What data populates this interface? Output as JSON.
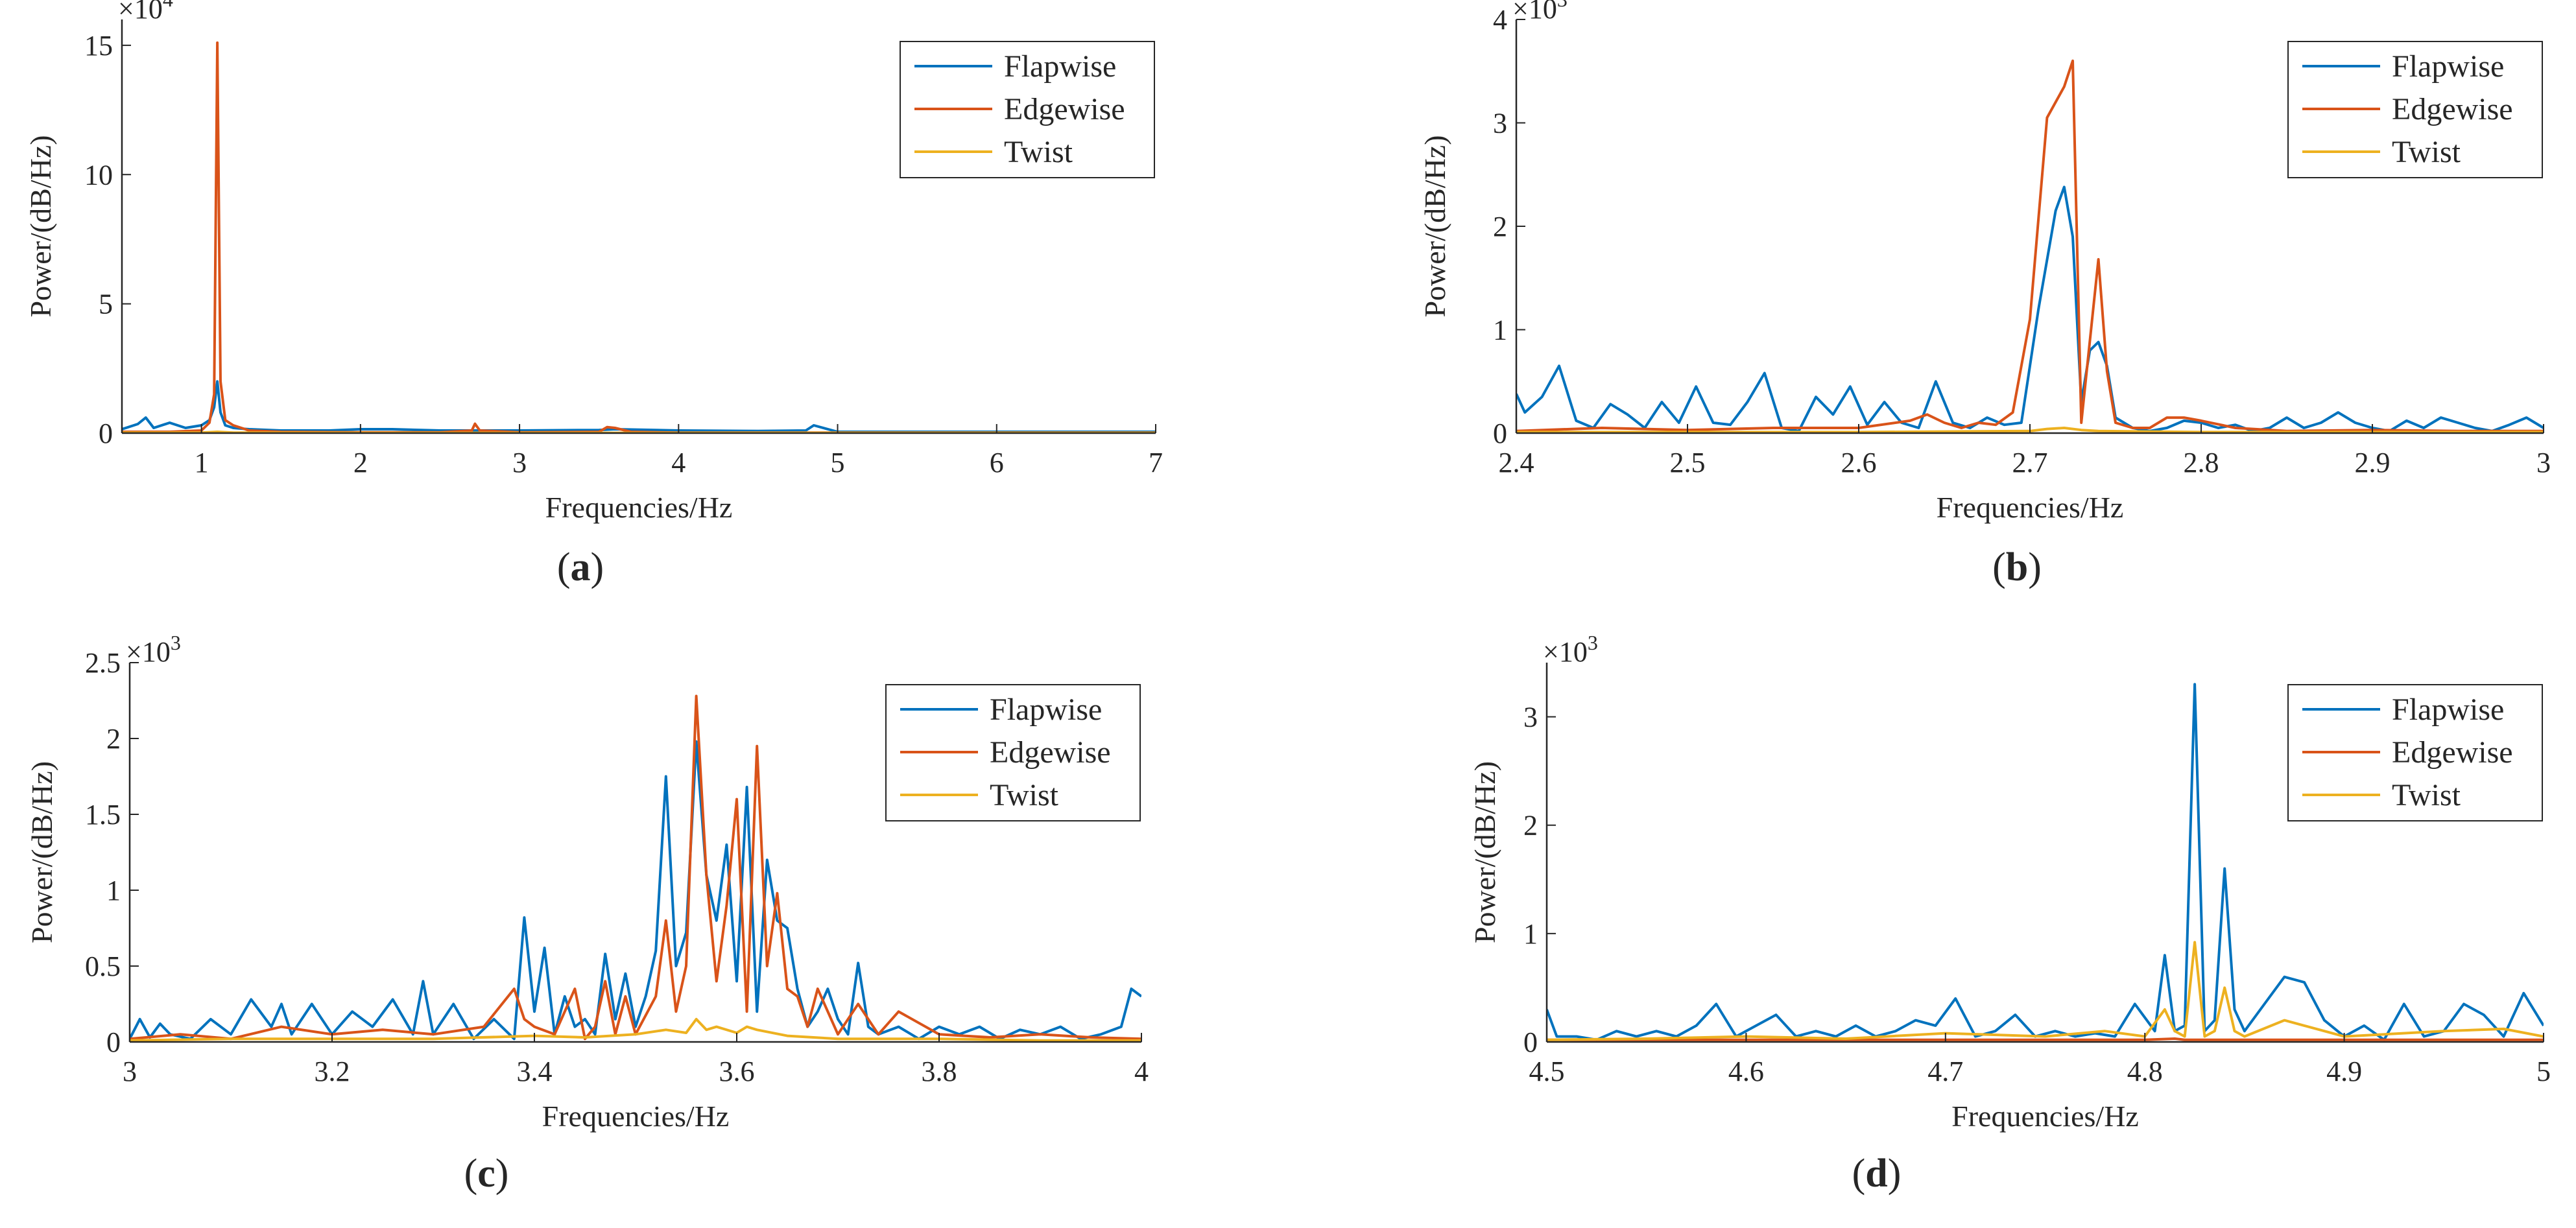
{
  "colors": {
    "Flapwise": "#0072BD",
    "Edgewise": "#D95319",
    "Twist": "#EDB120",
    "axis": "#262626"
  },
  "chart_data": [
    {
      "panel": "a",
      "caption": {
        "open": "(",
        "letter": "a",
        "close": ")"
      },
      "type": "line",
      "xlabel": "Frequencies/Hz",
      "ylabel": "Power/(dB/Hz)",
      "xlim": [
        0.5,
        7
      ],
      "ylim": [
        0,
        16
      ],
      "xticks": [
        1,
        2,
        3,
        4,
        5,
        6,
        7
      ],
      "xtick_labels": [
        "1",
        "2",
        "3",
        "4",
        "5",
        "6",
        "7"
      ],
      "yticks": [
        0,
        5,
        10,
        15
      ],
      "ytick_labels": [
        "0",
        "5",
        "10",
        "15"
      ],
      "multiplier": {
        "base": "×10",
        "exp": "4"
      },
      "legend": [
        "Flapwise",
        "Edgewise",
        "Twist"
      ],
      "legend_position": "top-right",
      "series": [
        {
          "name": "Flapwise",
          "x": [
            0.5,
            0.6,
            0.65,
            0.7,
            0.8,
            0.9,
            1.0,
            1.05,
            1.08,
            1.1,
            1.12,
            1.15,
            1.2,
            1.3,
            1.5,
            1.8,
            2.0,
            2.2,
            2.5,
            3.0,
            3.5,
            3.6,
            4.0,
            4.5,
            4.8,
            4.85,
            5.0,
            6.0,
            7.0
          ],
          "y": [
            0.15,
            0.35,
            0.6,
            0.2,
            0.4,
            0.2,
            0.3,
            0.5,
            1.0,
            2.0,
            0.8,
            0.3,
            0.2,
            0.15,
            0.1,
            0.1,
            0.15,
            0.15,
            0.1,
            0.1,
            0.12,
            0.15,
            0.1,
            0.08,
            0.1,
            0.3,
            0.05,
            0.05,
            0.05
          ]
        },
        {
          "name": "Edgewise",
          "x": [
            0.5,
            0.8,
            1.0,
            1.05,
            1.08,
            1.1,
            1.12,
            1.15,
            1.2,
            1.3,
            1.5,
            2.0,
            2.5,
            2.7,
            2.72,
            2.75,
            3.0,
            3.5,
            3.55,
            3.6,
            3.7,
            4.0,
            5.0,
            6.0,
            7.0
          ],
          "y": [
            0.05,
            0.05,
            0.1,
            0.4,
            1.5,
            15.1,
            2.0,
            0.5,
            0.3,
            0.1,
            0.05,
            0.03,
            0.03,
            0.1,
            0.36,
            0.1,
            0.03,
            0.05,
            0.23,
            0.2,
            0.05,
            0.02,
            0.02,
            0.02,
            0.02
          ]
        },
        {
          "name": "Twist",
          "x": [
            0.5,
            1.0,
            1.1,
            1.2,
            2.0,
            3.0,
            4.0,
            5.0,
            6.0,
            7.0
          ],
          "y": [
            0.02,
            0.02,
            0.05,
            0.02,
            0.01,
            0.01,
            0.01,
            0.01,
            0.01,
            0.01
          ]
        }
      ]
    },
    {
      "panel": "b",
      "caption": {
        "open": "(",
        "letter": "b",
        "close": ")"
      },
      "type": "line",
      "xlabel": "Frequencies/Hz",
      "ylabel": "Power/(dB/Hz)",
      "xlim": [
        2.4,
        3.0
      ],
      "ylim": [
        0,
        4
      ],
      "xticks": [
        2.4,
        2.5,
        2.6,
        2.7,
        2.8,
        2.9,
        3.0
      ],
      "xtick_labels": [
        "2.4",
        "2.5",
        "2.6",
        "2.7",
        "2.8",
        "2.9",
        "3"
      ],
      "yticks": [
        0,
        1,
        2,
        3,
        4
      ],
      "ytick_labels": [
        "0",
        "1",
        "2",
        "3",
        "4"
      ],
      "multiplier": {
        "base": "×10",
        "exp": "3"
      },
      "legend": [
        "Flapwise",
        "Edgewise",
        "Twist"
      ],
      "legend_position": "top-right",
      "series": [
        {
          "name": "Flapwise",
          "x": [
            2.4,
            2.405,
            2.415,
            2.425,
            2.435,
            2.445,
            2.455,
            2.465,
            2.475,
            2.485,
            2.495,
            2.505,
            2.515,
            2.525,
            2.535,
            2.545,
            2.555,
            2.565,
            2.575,
            2.585,
            2.595,
            2.605,
            2.615,
            2.625,
            2.635,
            2.645,
            2.655,
            2.665,
            2.675,
            2.685,
            2.695,
            2.705,
            2.715,
            2.72,
            2.725,
            2.73,
            2.735,
            2.74,
            2.745,
            2.75,
            2.76,
            2.77,
            2.78,
            2.79,
            2.8,
            2.81,
            2.82,
            2.83,
            2.84,
            2.85,
            2.86,
            2.87,
            2.88,
            2.89,
            2.9,
            2.91,
            2.92,
            2.93,
            2.94,
            2.95,
            2.96,
            2.97,
            2.98,
            2.99,
            3.0
          ],
          "y": [
            0.38,
            0.2,
            0.35,
            0.65,
            0.12,
            0.05,
            0.28,
            0.18,
            0.05,
            0.3,
            0.1,
            0.45,
            0.1,
            0.08,
            0.3,
            0.58,
            0.05,
            0.02,
            0.35,
            0.18,
            0.45,
            0.08,
            0.3,
            0.1,
            0.05,
            0.5,
            0.1,
            0.05,
            0.15,
            0.08,
            0.1,
            1.2,
            2.15,
            2.38,
            1.9,
            0.3,
            0.8,
            0.88,
            0.65,
            0.15,
            0.05,
            0.02,
            0.05,
            0.12,
            0.1,
            0.05,
            0.08,
            0.02,
            0.05,
            0.15,
            0.05,
            0.1,
            0.2,
            0.1,
            0.05,
            0.02,
            0.12,
            0.05,
            0.15,
            0.1,
            0.05,
            0.02,
            0.08,
            0.15,
            0.05
          ]
        },
        {
          "name": "Edgewise",
          "x": [
            2.4,
            2.45,
            2.5,
            2.55,
            2.6,
            2.63,
            2.64,
            2.65,
            2.66,
            2.67,
            2.68,
            2.69,
            2.7,
            2.71,
            2.72,
            2.725,
            2.73,
            2.74,
            2.745,
            2.75,
            2.76,
            2.77,
            2.78,
            2.79,
            2.8,
            2.82,
            2.85,
            2.9,
            2.95,
            3.0
          ],
          "y": [
            0.02,
            0.05,
            0.03,
            0.05,
            0.05,
            0.12,
            0.18,
            0.1,
            0.05,
            0.1,
            0.08,
            0.2,
            1.1,
            3.05,
            3.35,
            3.6,
            0.1,
            1.68,
            0.6,
            0.1,
            0.05,
            0.05,
            0.15,
            0.15,
            0.12,
            0.05,
            0.02,
            0.03,
            0.02,
            0.02
          ]
        },
        {
          "name": "Twist",
          "x": [
            2.4,
            2.5,
            2.6,
            2.7,
            2.71,
            2.72,
            2.73,
            2.74,
            2.8,
            2.9,
            3.0
          ],
          "y": [
            0.01,
            0.01,
            0.01,
            0.02,
            0.04,
            0.05,
            0.03,
            0.02,
            0.01,
            0.01,
            0.01
          ]
        }
      ]
    },
    {
      "panel": "c",
      "caption": {
        "open": "(",
        "letter": "c",
        "close": ")"
      },
      "type": "line",
      "xlabel": "Frequencies/Hz",
      "ylabel": "Power/(dB/Hz)",
      "xlim": [
        3.0,
        4.0
      ],
      "ylim": [
        0,
        2.5
      ],
      "xticks": [
        3.0,
        3.2,
        3.4,
        3.6,
        3.8,
        4.0
      ],
      "xtick_labels": [
        "3",
        "3.2",
        "3.4",
        "3.6",
        "3.8",
        "4"
      ],
      "yticks": [
        0,
        0.5,
        1,
        1.5,
        2,
        2.5
      ],
      "ytick_labels": [
        "0",
        "0.5",
        "1",
        "1.5",
        "2",
        "2.5"
      ],
      "multiplier": {
        "base": "×10",
        "exp": "3"
      },
      "legend": [
        "Flapwise",
        "Edgewise",
        "Twist"
      ],
      "legend_position": "top-right",
      "series": [
        {
          "name": "Flapwise",
          "x": [
            3.0,
            3.01,
            3.02,
            3.03,
            3.04,
            3.06,
            3.08,
            3.1,
            3.12,
            3.14,
            3.15,
            3.16,
            3.18,
            3.2,
            3.22,
            3.24,
            3.26,
            3.28,
            3.29,
            3.3,
            3.32,
            3.34,
            3.36,
            3.38,
            3.39,
            3.4,
            3.41,
            3.42,
            3.43,
            3.44,
            3.45,
            3.46,
            3.47,
            3.48,
            3.49,
            3.5,
            3.51,
            3.52,
            3.53,
            3.54,
            3.55,
            3.56,
            3.57,
            3.58,
            3.59,
            3.6,
            3.61,
            3.62,
            3.63,
            3.64,
            3.65,
            3.66,
            3.67,
            3.68,
            3.69,
            3.7,
            3.71,
            3.72,
            3.73,
            3.74,
            3.76,
            3.78,
            3.8,
            3.82,
            3.84,
            3.86,
            3.88,
            3.9,
            3.92,
            3.94,
            3.96,
            3.98,
            3.99,
            4.0
          ],
          "y": [
            0.02,
            0.15,
            0.03,
            0.12,
            0.05,
            0.02,
            0.15,
            0.05,
            0.28,
            0.1,
            0.25,
            0.05,
            0.25,
            0.05,
            0.2,
            0.1,
            0.28,
            0.05,
            0.4,
            0.05,
            0.25,
            0.02,
            0.15,
            0.02,
            0.82,
            0.2,
            0.62,
            0.05,
            0.3,
            0.1,
            0.15,
            0.05,
            0.58,
            0.15,
            0.45,
            0.1,
            0.3,
            0.6,
            1.75,
            0.5,
            0.72,
            1.98,
            1.1,
            0.8,
            1.3,
            0.4,
            1.68,
            0.2,
            1.2,
            0.8,
            0.75,
            0.35,
            0.1,
            0.2,
            0.35,
            0.15,
            0.05,
            0.52,
            0.1,
            0.05,
            0.1,
            0.02,
            0.1,
            0.05,
            0.1,
            0.02,
            0.08,
            0.05,
            0.1,
            0.02,
            0.05,
            0.1,
            0.35,
            0.3
          ]
        },
        {
          "name": "Edgewise",
          "x": [
            3.0,
            3.05,
            3.1,
            3.15,
            3.2,
            3.25,
            3.3,
            3.35,
            3.38,
            3.39,
            3.4,
            3.42,
            3.44,
            3.45,
            3.46,
            3.47,
            3.48,
            3.49,
            3.5,
            3.52,
            3.53,
            3.54,
            3.55,
            3.56,
            3.57,
            3.58,
            3.59,
            3.6,
            3.61,
            3.62,
            3.63,
            3.64,
            3.65,
            3.66,
            3.67,
            3.68,
            3.7,
            3.72,
            3.74,
            3.76,
            3.8,
            3.85,
            3.9,
            3.95,
            4.0
          ],
          "y": [
            0.02,
            0.05,
            0.02,
            0.1,
            0.05,
            0.08,
            0.05,
            0.1,
            0.35,
            0.15,
            0.1,
            0.05,
            0.35,
            0.02,
            0.1,
            0.4,
            0.05,
            0.3,
            0.05,
            0.3,
            0.8,
            0.2,
            0.5,
            2.28,
            1.1,
            0.4,
            0.9,
            1.6,
            0.2,
            1.95,
            0.5,
            0.98,
            0.35,
            0.3,
            0.1,
            0.35,
            0.05,
            0.25,
            0.05,
            0.2,
            0.05,
            0.03,
            0.05,
            0.03,
            0.02
          ]
        },
        {
          "name": "Twist",
          "x": [
            3.0,
            3.1,
            3.2,
            3.3,
            3.4,
            3.45,
            3.5,
            3.53,
            3.55,
            3.56,
            3.57,
            3.58,
            3.6,
            3.61,
            3.62,
            3.65,
            3.7,
            3.8,
            3.9,
            4.0
          ],
          "y": [
            0.01,
            0.02,
            0.02,
            0.02,
            0.04,
            0.03,
            0.05,
            0.08,
            0.06,
            0.15,
            0.08,
            0.1,
            0.06,
            0.1,
            0.08,
            0.04,
            0.02,
            0.02,
            0.01,
            0.01
          ]
        }
      ]
    },
    {
      "panel": "d",
      "caption": {
        "open": "(",
        "letter": "d",
        "close": ")"
      },
      "type": "line",
      "xlabel": "Frequencies/Hz",
      "ylabel": "Power/(dB/Hz)",
      "xlim": [
        4.5,
        5.0
      ],
      "ylim": [
        0,
        3.5
      ],
      "xticks": [
        4.5,
        4.6,
        4.7,
        4.8,
        4.9,
        5.0
      ],
      "xtick_labels": [
        "4.5",
        "4.6",
        "4.7",
        "4.8",
        "4.9",
        "5"
      ],
      "yticks": [
        0,
        1,
        2,
        3
      ],
      "ytick_labels": [
        "0",
        "1",
        "2",
        "3"
      ],
      "multiplier": {
        "base": "×10",
        "exp": "3"
      },
      "legend": [
        "Flapwise",
        "Edgewise",
        "Twist"
      ],
      "legend_position": "top-right",
      "series": [
        {
          "name": "Flapwise",
          "x": [
            4.5,
            4.505,
            4.515,
            4.525,
            4.535,
            4.545,
            4.555,
            4.565,
            4.575,
            4.585,
            4.595,
            4.605,
            4.615,
            4.625,
            4.635,
            4.645,
            4.655,
            4.665,
            4.675,
            4.685,
            4.695,
            4.705,
            4.715,
            4.725,
            4.735,
            4.745,
            4.755,
            4.765,
            4.775,
            4.785,
            4.795,
            4.805,
            4.81,
            4.815,
            4.82,
            4.825,
            4.83,
            4.835,
            4.84,
            4.845,
            4.85,
            4.86,
            4.87,
            4.88,
            4.89,
            4.9,
            4.91,
            4.92,
            4.93,
            4.94,
            4.95,
            4.96,
            4.97,
            4.98,
            4.99,
            5.0
          ],
          "y": [
            0.3,
            0.05,
            0.05,
            0.02,
            0.1,
            0.05,
            0.1,
            0.05,
            0.15,
            0.35,
            0.05,
            0.15,
            0.25,
            0.05,
            0.1,
            0.05,
            0.15,
            0.05,
            0.1,
            0.2,
            0.15,
            0.4,
            0.05,
            0.1,
            0.25,
            0.05,
            0.1,
            0.05,
            0.08,
            0.05,
            0.35,
            0.1,
            0.8,
            0.1,
            0.15,
            3.3,
            0.1,
            0.2,
            1.6,
            0.3,
            0.1,
            0.35,
            0.6,
            0.55,
            0.2,
            0.05,
            0.15,
            0.02,
            0.35,
            0.05,
            0.1,
            0.35,
            0.25,
            0.05,
            0.45,
            0.15
          ]
        },
        {
          "name": "Edgewise",
          "x": [
            4.5,
            4.6,
            4.7,
            4.8,
            4.815,
            4.82,
            4.9,
            5.0
          ],
          "y": [
            0.02,
            0.02,
            0.02,
            0.02,
            0.03,
            0.02,
            0.02,
            0.02
          ]
        },
        {
          "name": "Twist",
          "x": [
            4.5,
            4.55,
            4.6,
            4.65,
            4.7,
            4.75,
            4.78,
            4.8,
            4.81,
            4.815,
            4.82,
            4.825,
            4.83,
            4.835,
            4.84,
            4.845,
            4.85,
            4.87,
            4.88,
            4.9,
            4.95,
            4.98,
            5.0
          ],
          "y": [
            0.02,
            0.03,
            0.05,
            0.03,
            0.08,
            0.05,
            0.1,
            0.05,
            0.3,
            0.1,
            0.05,
            0.92,
            0.05,
            0.1,
            0.5,
            0.1,
            0.05,
            0.2,
            0.15,
            0.05,
            0.1,
            0.12,
            0.05
          ]
        }
      ]
    }
  ]
}
